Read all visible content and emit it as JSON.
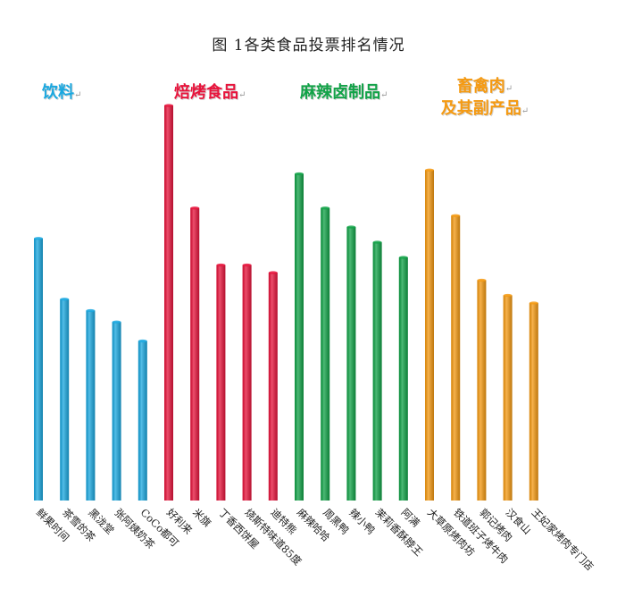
{
  "title": "图 1各类食品投票排名情况",
  "chart_data": {
    "type": "bar",
    "title": "图 1各类食品投票排名情况",
    "xlabel": "",
    "ylabel": "",
    "grid": false,
    "legend": "none",
    "groups": [
      {
        "name": "饮料",
        "color": "#1AA8E0",
        "categories": [
          "鲜果时间",
          "茶雪的茶",
          "黑泷堂",
          "张阿姨奶茶",
          "CoCo都可"
        ],
        "values": [
          69,
          53,
          50,
          47,
          42
        ]
      },
      {
        "name": "焙烤食品",
        "color": "#E8143C",
        "categories": [
          "好利来",
          "米旗",
          "丁香西饼屋",
          "烧斯特味道85度",
          "迪特熊"
        ],
        "values": [
          104,
          77,
          62,
          62,
          60
        ]
      },
      {
        "name": "麻辣卤制品",
        "color": "#12A348",
        "categories": [
          "麻辣哈哈",
          "周黑鸭",
          "辣小鸭",
          "茉莉香酥脖王",
          "阿满"
        ],
        "values": [
          86,
          77,
          72,
          68,
          64
        ]
      },
      {
        "name": "畜禽肉及其副产品",
        "name_lines": [
          "畜禽肉",
          "及其副产品"
        ],
        "color": "#F59A12",
        "categories": [
          "大草原烤肉坊",
          "铁道班子烤牛肉",
          "郭记烤肉",
          "汉食山",
          "王妃家烤肉专门店"
        ],
        "values": [
          87,
          75,
          58,
          54,
          52
        ]
      }
    ],
    "ylim": [
      0,
      104
    ]
  }
}
